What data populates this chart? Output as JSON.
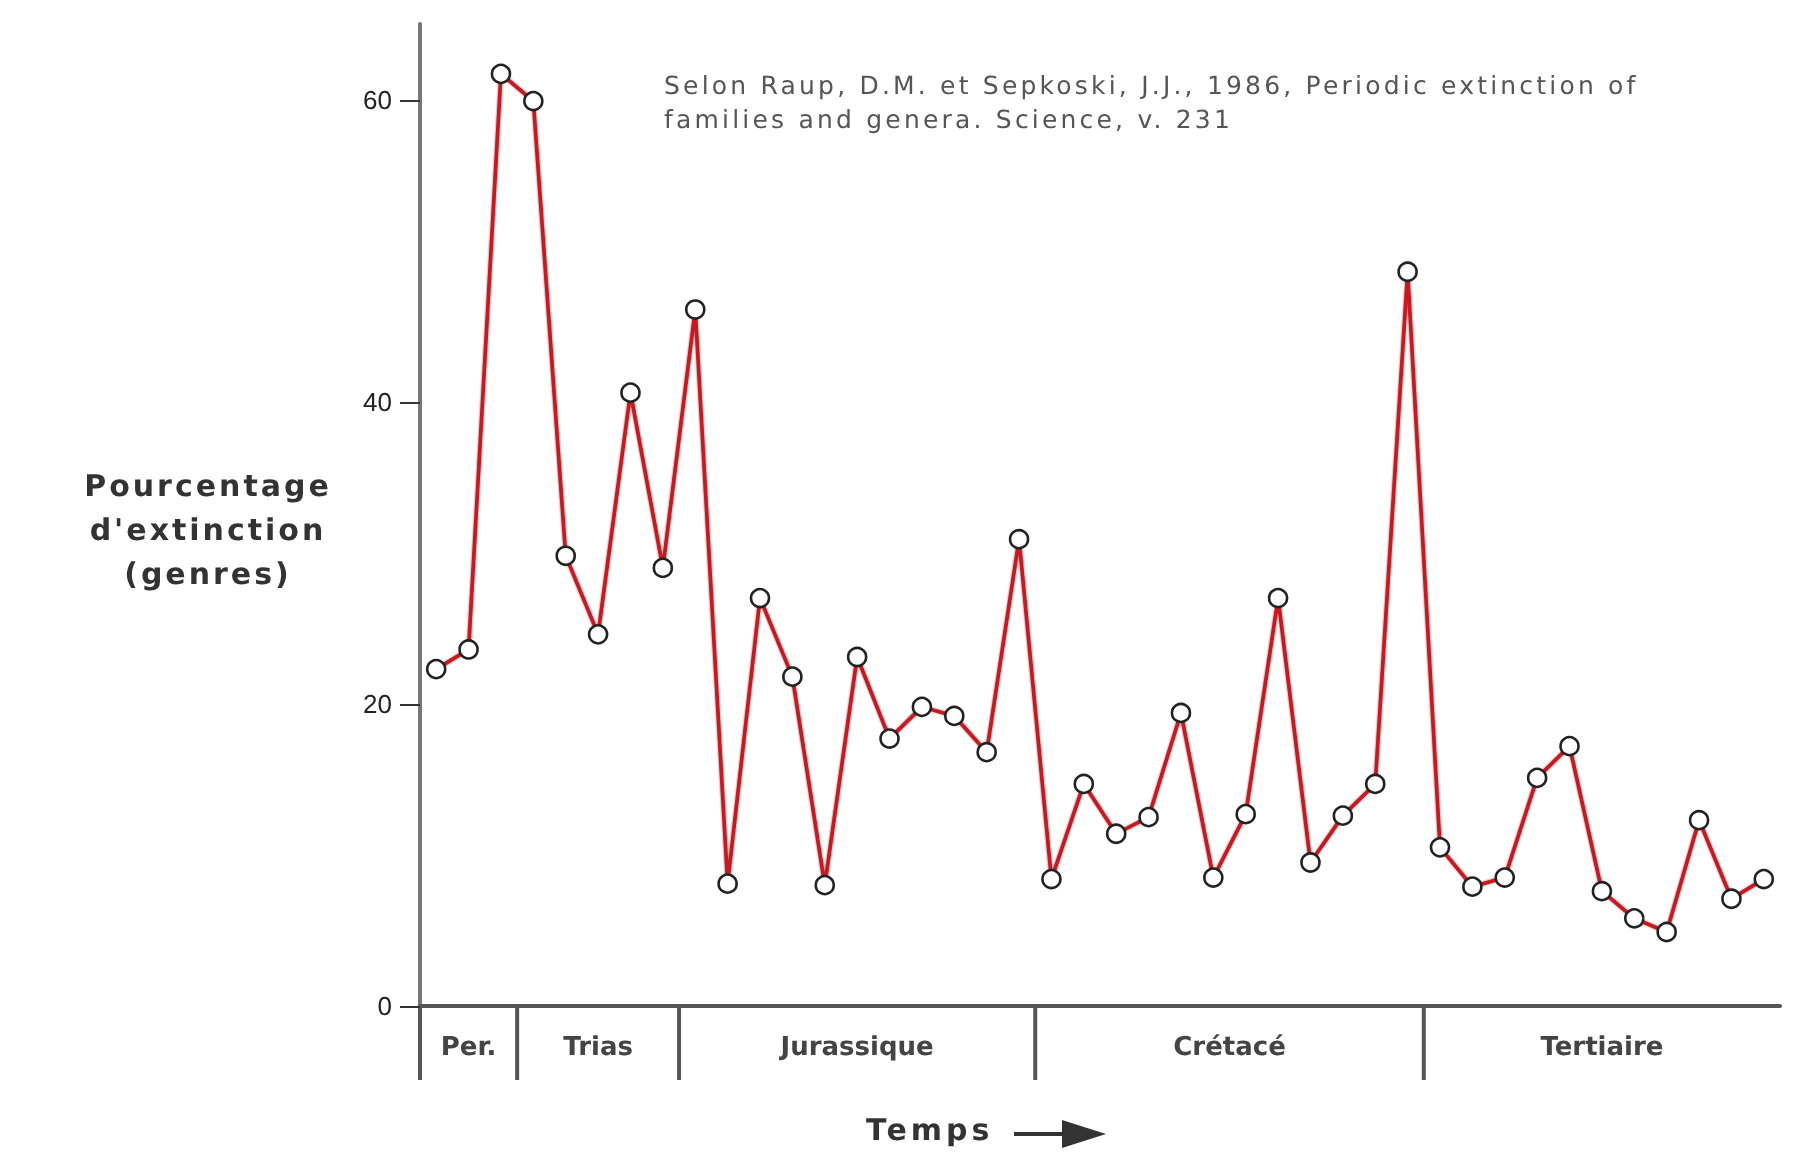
{
  "chart_data": {
    "type": "line",
    "ylabel": "Pourcentage d'extinction (genres)",
    "xlabel": "Temps",
    "annotations": [
      "Selon Raup, D.M. et Sepkoski, J.J., 1986, Periodic extinction of families and genera. Science, v. 231",
      "Per.",
      "Trias",
      "Jurassique",
      "Crétacé",
      "Tertiaire"
    ],
    "categories": [
      null,
      null,
      null,
      null,
      null,
      null,
      null,
      null,
      null,
      null,
      null,
      null,
      null,
      null,
      null,
      null,
      null,
      null,
      null,
      null,
      null,
      null,
      null,
      null,
      null,
      null,
      null,
      null,
      null,
      null,
      null,
      null,
      null,
      null,
      null,
      null,
      null,
      null,
      null,
      null,
      null,
      null
    ],
    "series": [
      {
        "color": "#d0121b",
        "values": [
          22.3,
          23.6,
          61.7,
          59.9,
          29.8,
          24.6,
          40.6,
          29.0,
          46.1,
          8.1,
          27.0,
          21.8,
          8.0,
          23.1,
          17.7,
          19.8,
          19.2,
          16.8,
          30.9,
          8.4,
          14.7,
          11.4,
          12.5,
          19.4,
          8.5,
          12.7,
          27.0,
          9.5,
          12.6,
          14.7,
          48.6,
          10.5,
          7.9,
          8.5,
          15.1,
          17.2,
          7.6,
          5.8,
          4.9,
          12.3,
          7.1,
          8.4
        ]
      }
    ],
    "ylim": [
      0,
      65
    ],
    "yticks": [
      0,
      20,
      40,
      60
    ],
    "grid": false,
    "marker": "circle",
    "line_style": "solid",
    "tick_labels": "y"
  }
}
